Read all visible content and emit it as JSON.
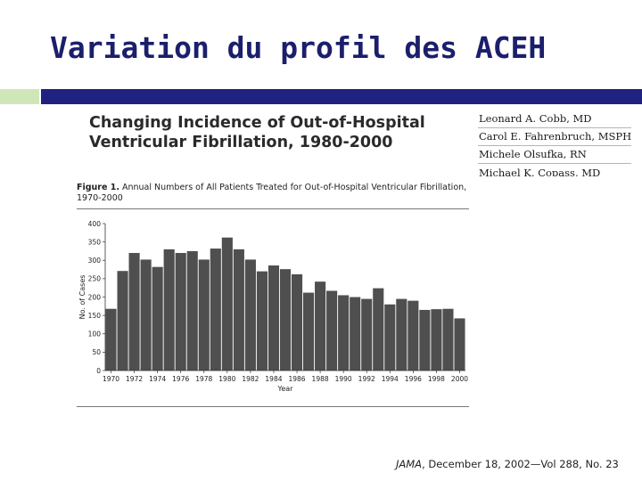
{
  "slide": {
    "title": "Variation du profil des ACEH"
  },
  "article": {
    "title_line1": "Changing Incidence of Out-of-Hospital",
    "title_line2": "Ventricular Fibrillation, 1980-2000",
    "authors": [
      "Leonard A. Cobb, MD",
      "Carol E. Fahrenbruch, MSPH",
      "Michele Olsufka, RN",
      "Michael K. Copass, MD"
    ],
    "figure_label": "Figure 1.",
    "figure_caption": "Annual Numbers of All Patients Treated for Out-of-Hospital Ventricular Fibrillation, 1970-2000",
    "citation_journal": "JAMA",
    "citation_rest": ", December 18, 2002—Vol 288, No. 23"
  },
  "colors": {
    "title_text": "#1b1f6b",
    "title_bar": "#1f2280",
    "title_accent": "#cfe6b8",
    "bar_fill": "#4f4f4f"
  },
  "chart_data": {
    "type": "bar",
    "title": "",
    "xlabel": "Year",
    "ylabel": "No. of Cases",
    "ylim": [
      0,
      400
    ],
    "yticks": [
      0,
      50,
      100,
      150,
      200,
      250,
      300,
      350,
      400
    ],
    "xtick_labels": [
      "1970",
      "1972",
      "1974",
      "1976",
      "1978",
      "1980",
      "1982",
      "1984",
      "1986",
      "1988",
      "1990",
      "1992",
      "1994",
      "1996",
      "1998",
      "2000"
    ],
    "categories": [
      "1970",
      "1971",
      "1972",
      "1973",
      "1974",
      "1975",
      "1976",
      "1977",
      "1978",
      "1979",
      "1980",
      "1981",
      "1982",
      "1983",
      "1984",
      "1985",
      "1986",
      "1987",
      "1988",
      "1989",
      "1990",
      "1991",
      "1992",
      "1993",
      "1994",
      "1995",
      "1996",
      "1997",
      "1998",
      "1999",
      "2000"
    ],
    "values": [
      168,
      271,
      320,
      302,
      282,
      330,
      320,
      325,
      302,
      332,
      362,
      330,
      302,
      270,
      286,
      276,
      262,
      212,
      242,
      217,
      205,
      200,
      195,
      224,
      180,
      195,
      190,
      165,
      167,
      168,
      142
    ],
    "grid": false,
    "legend": "none"
  }
}
